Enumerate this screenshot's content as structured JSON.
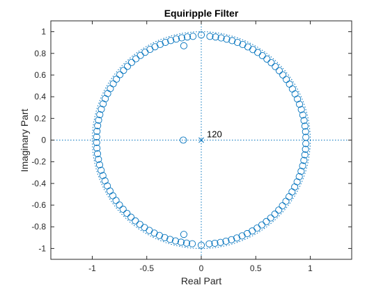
{
  "chart_data": {
    "type": "scatter",
    "title": "Equiripple Filter",
    "xlabel": "Real Part",
    "ylabel": "Imaginary Part",
    "xlim": [
      -1.38,
      1.38
    ],
    "ylim": [
      -1.1,
      1.1
    ],
    "xticks": [
      -1,
      -0.5,
      0,
      0.5,
      1
    ],
    "xtick_labels": [
      "-1",
      "-0.5",
      "0",
      "0.5",
      "1"
    ],
    "yticks": [
      -1,
      -0.8,
      -0.6,
      -0.4,
      -0.2,
      0,
      0.2,
      0.4,
      0.6,
      0.8,
      1
    ],
    "ytick_labels": [
      "-1",
      "-0.8",
      "-0.6",
      "-0.4",
      "-0.2",
      "0",
      "0.2",
      "0.4",
      "0.6",
      "0.8",
      "1"
    ],
    "grid": false,
    "box": true,
    "unit_circle": true,
    "axis_lines_at_origin": true,
    "zeros": {
      "marker": "circle",
      "ring_count": 116,
      "ring_radius": 0.96,
      "ring_start_angle_deg": 1.55,
      "ring_step_deg": 3.1,
      "ring_skip_angles_deg": [
        88.0,
        92.0,
        268.0,
        272.0
      ],
      "extra_points": [
        {
          "x": -0.16,
          "y": 0.87
        },
        {
          "x": -0.16,
          "y": -0.87
        },
        {
          "x": -0.165,
          "y": 0.0
        },
        {
          "x": 0.0,
          "y": 0.97
        },
        {
          "x": 0.0,
          "y": -0.97
        }
      ]
    },
    "poles": {
      "marker": "x",
      "points": [
        {
          "x": 0,
          "y": 0
        }
      ],
      "multiplicity_label": "120"
    },
    "colors": {
      "marker": "#0072BD",
      "axis": "#262626",
      "background": "#ffffff"
    }
  }
}
